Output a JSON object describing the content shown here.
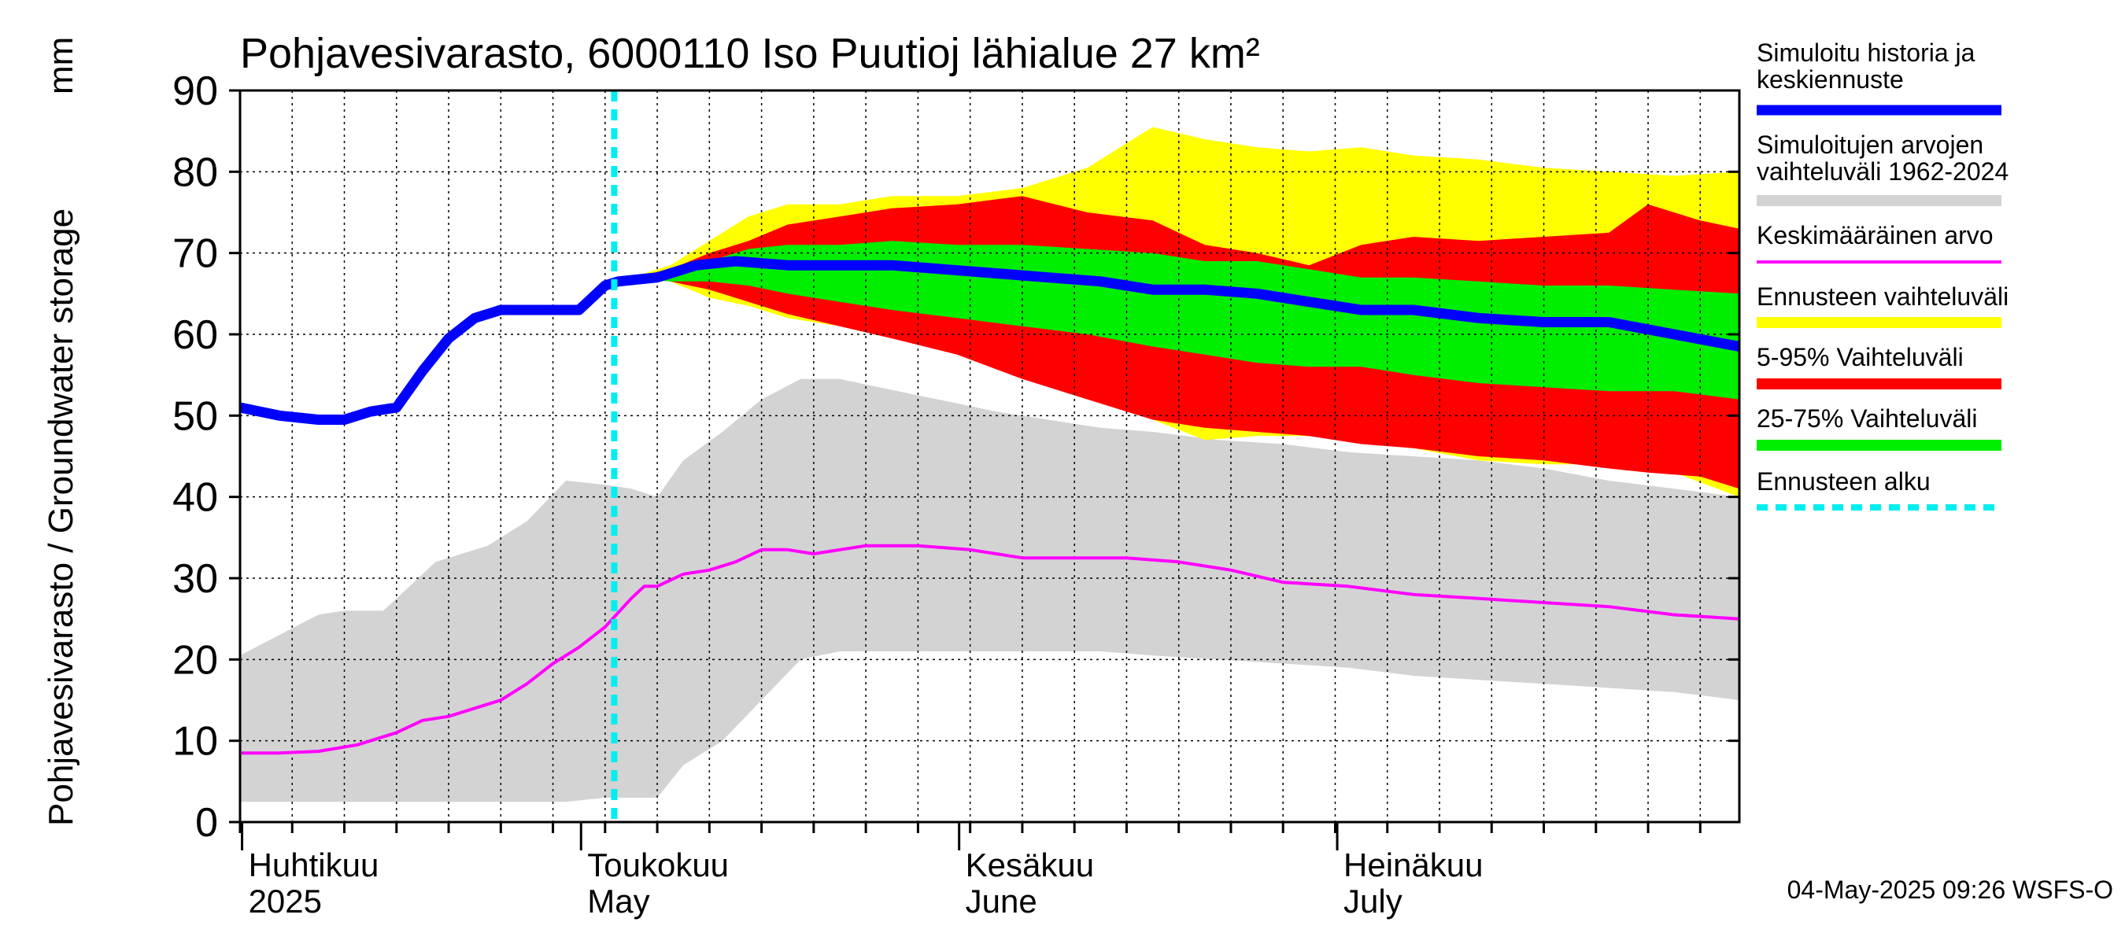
{
  "chart_data": {
    "type": "area",
    "title": "Pohjavesivarasto, 6000110 Iso Puutioj lähialue 27 km²",
    "ylabel": "Pohjavesivarasto / Groundwater storage",
    "yunit": "mm",
    "ylim": [
      0,
      90
    ],
    "yticks": [
      "0",
      "10",
      "20",
      "30",
      "40",
      "50",
      "60",
      "70",
      "80",
      "90"
    ],
    "xlim_days": [
      0,
      115
    ],
    "grid": true,
    "legend_position": "right",
    "month_labels": [
      {
        "day": 1,
        "fi": "Huhtikuu",
        "en": "2025"
      },
      {
        "day": 27,
        "fi": "Toukokuu",
        "en": "May"
      },
      {
        "day": 56,
        "fi": "Kesäkuu",
        "en": "June"
      },
      {
        "day": 85,
        "fi": "Heinäkuu",
        "en": "July"
      }
    ],
    "forecast_start_day": 28.7,
    "series": [
      {
        "name": "Simuloitujen arvojen vaihteluväli 1962-2024",
        "kind": "band",
        "color": "#d3d3d3",
        "x": [
          0,
          3,
          6,
          8,
          11,
          15,
          19,
          22,
          25,
          28,
          30,
          32,
          34,
          37,
          40,
          43,
          46,
          49,
          52,
          55,
          58,
          62,
          66,
          70,
          75,
          80,
          85,
          90,
          95,
          100,
          105,
          110,
          115
        ],
        "upper": [
          20.5,
          23,
          25.5,
          26,
          26,
          32,
          34,
          37,
          42,
          41.5,
          41,
          40,
          44.5,
          48,
          52,
          54.5,
          54.5,
          53.5,
          52.5,
          51.5,
          50.5,
          49.5,
          48.5,
          48,
          47,
          46.5,
          45.5,
          45,
          44.5,
          43.5,
          42,
          41,
          40
        ],
        "lower": [
          2.5,
          2.5,
          2.5,
          2.5,
          2.5,
          2.5,
          2.5,
          2.5,
          2.5,
          3,
          3,
          3,
          7,
          10,
          15,
          20,
          21,
          21,
          21,
          21,
          21,
          21,
          21,
          20.5,
          20,
          19.5,
          19,
          18,
          17.5,
          17,
          16.5,
          16,
          15
        ]
      },
      {
        "name": "Ennusteen vaihteluväli",
        "kind": "band",
        "color": "#ffff00",
        "x": [
          30,
          33,
          36,
          39,
          42,
          46,
          50,
          55,
          60,
          65,
          70,
          74,
          78,
          82,
          86,
          90,
          95,
          100,
          105,
          110,
          115
        ],
        "upper": [
          67,
          68.5,
          71.5,
          74.5,
          76,
          76,
          77,
          77,
          78,
          80.5,
          85.5,
          84,
          83,
          82.5,
          83,
          82,
          81.5,
          80.5,
          80,
          79.5,
          80
        ],
        "lower": [
          67,
          66.5,
          64.5,
          63.5,
          62,
          61,
          60,
          58.5,
          56,
          53,
          49.5,
          47,
          47.5,
          47.5,
          47,
          46,
          44.5,
          44,
          44,
          43,
          40
        ]
      },
      {
        "name": "5-95% Vaihteluväli",
        "kind": "band",
        "color": "#ff0000",
        "x": [
          30,
          33,
          36,
          39,
          42,
          46,
          50,
          55,
          60,
          65,
          70,
          74,
          78,
          82,
          86,
          90,
          95,
          100,
          105,
          108,
          112,
          115
        ],
        "upper": [
          67,
          68,
          70,
          71.5,
          73.5,
          74.5,
          75.5,
          76,
          77,
          75,
          74,
          71,
          70,
          68.5,
          71,
          72,
          71.5,
          72,
          72.5,
          76,
          74,
          73
        ],
        "lower": [
          67,
          66.5,
          65.5,
          64,
          62.5,
          61,
          59.5,
          57.5,
          54.5,
          52,
          49.5,
          48.5,
          48,
          47.5,
          46.5,
          46,
          45,
          44.5,
          43.5,
          43,
          42.5,
          41
        ]
      },
      {
        "name": "25-75% Vaihteluväli",
        "kind": "band",
        "color": "#00ee00",
        "x": [
          30,
          33,
          36,
          39,
          42,
          46,
          50,
          55,
          60,
          65,
          70,
          74,
          78,
          82,
          86,
          90,
          95,
          100,
          105,
          110,
          115
        ],
        "upper": [
          67,
          67.5,
          69,
          70.5,
          71,
          71,
          71.5,
          71,
          71,
          70.5,
          70,
          69,
          69,
          68,
          67,
          67,
          66.5,
          66,
          66,
          65.5,
          65
        ],
        "lower": [
          67,
          66.5,
          66.5,
          66,
          65,
          64,
          63,
          62,
          61,
          60,
          58.5,
          57.5,
          56.5,
          56,
          56,
          55,
          54,
          53.5,
          53,
          53,
          52
        ]
      },
      {
        "name": "Keskimääräinen arvo",
        "kind": "line",
        "color": "#ff00ff",
        "x": [
          0,
          3,
          6,
          9,
          12,
          14,
          16,
          18,
          20,
          22,
          24,
          26,
          28,
          30,
          31,
          32,
          34,
          36,
          38,
          40,
          42,
          44,
          48,
          52,
          56,
          60,
          64,
          68,
          72,
          76,
          80,
          85,
          90,
          95,
          100,
          105,
          110,
          115
        ],
        "values": [
          8.5,
          8.5,
          8.7,
          9.5,
          11,
          12.5,
          13,
          14,
          15,
          17,
          19.5,
          21.5,
          24,
          27.5,
          29,
          29,
          30.5,
          31,
          32,
          33.5,
          33.5,
          33,
          34,
          34,
          33.5,
          32.5,
          32.5,
          32.5,
          32,
          31,
          29.5,
          29,
          28,
          27.5,
          27,
          26.5,
          25.5,
          25
        ]
      },
      {
        "name": "Simuloitu historia ja keskiennuste",
        "kind": "line",
        "color": "#0000ff",
        "x": [
          0,
          3,
          6,
          8,
          10,
          12,
          14,
          16,
          18,
          19,
          20,
          22,
          24,
          26,
          27,
          28,
          29,
          32,
          35,
          38,
          42,
          46,
          50,
          54,
          58,
          62,
          66,
          70,
          74,
          78,
          82,
          86,
          90,
          95,
          100,
          105,
          110,
          115
        ],
        "values": [
          51,
          50,
          49.5,
          49.5,
          50.5,
          51,
          55.5,
          59.5,
          62,
          62.5,
          63,
          63,
          63,
          63,
          64.5,
          66,
          66.5,
          67,
          68.5,
          69,
          68.5,
          68.5,
          68.5,
          68,
          67.5,
          67,
          66.5,
          65.5,
          65.5,
          65,
          64,
          63,
          63,
          62,
          61.5,
          61.5,
          60,
          58.5
        ]
      },
      {
        "name": "Ennusteen alku",
        "kind": "vline",
        "color": "#00eeee"
      }
    ],
    "legend": [
      {
        "label": "Simuloitu historia ja keskiennuste",
        "color": "#0000ff",
        "style": "thick"
      },
      {
        "label": "Simuloitujen arvojen vaihteluväli 1962-2024",
        "color": "#d3d3d3",
        "style": "band"
      },
      {
        "label": "Keskimääräinen arvo",
        "color": "#ff00ff",
        "style": "thin"
      },
      {
        "label": "Ennusteen vaihteluväli",
        "color": "#ffff00",
        "style": "band"
      },
      {
        "label": "5-95% Vaihteluväli",
        "color": "#ff0000",
        "style": "band"
      },
      {
        "label": "25-75% Vaihteluväli",
        "color": "#00ee00",
        "style": "band"
      },
      {
        "label": "Ennusteen alku",
        "color": "#00eeee",
        "style": "dashed"
      }
    ],
    "footer": "04-May-2025 09:26 WSFS-O"
  }
}
